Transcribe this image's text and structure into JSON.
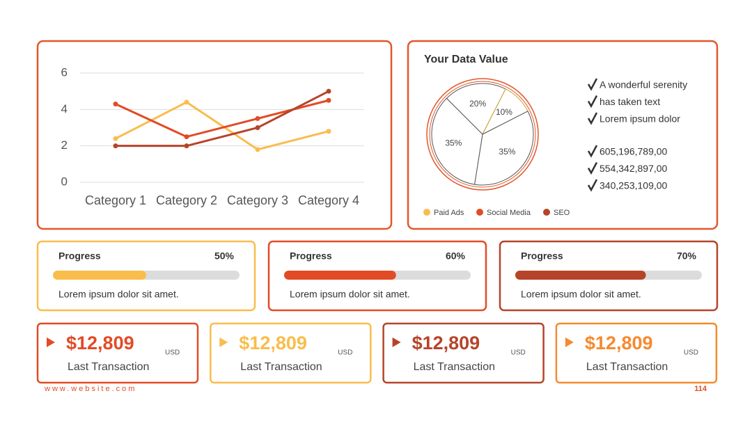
{
  "chart_data": [
    {
      "type": "line",
      "categories": [
        "Category 1",
        "Category 2",
        "Category 3",
        "Category 4"
      ],
      "series": [
        {
          "name": "Paid Ads",
          "color": "#f9bd4c",
          "values": [
            2.4,
            4.4,
            1.8,
            2.8
          ]
        },
        {
          "name": "Social Media",
          "color": "#e24b26",
          "values": [
            4.3,
            2.5,
            3.5,
            4.5
          ]
        },
        {
          "name": "SEO",
          "color": "#b6442a",
          "values": [
            2,
            2,
            3,
            5
          ]
        }
      ],
      "ylim": [
        0,
        6
      ],
      "yticks": [
        0,
        2,
        4,
        6
      ],
      "grid": true
    },
    {
      "type": "pie",
      "title": "Your Data Value",
      "values": [
        20,
        10,
        35,
        35
      ],
      "value_labels": [
        "20%",
        "10%",
        "35%",
        "35%"
      ]
    }
  ],
  "checklist": [
    "A wonderful serenity",
    "has taken text",
    "Lorem ipsum dolor"
  ],
  "figures": [
    "605,196,789,00",
    "554,342,897,00",
    "340,253,109,00"
  ],
  "progress": [
    {
      "title": "Progress",
      "value": 50,
      "value_label": "50%",
      "xlim": [
        0,
        100
      ],
      "color": "#f9bd4c",
      "text": "Lorem ipsum dolor sit amet."
    },
    {
      "title": "Progress",
      "value": 60,
      "value_label": "60%",
      "xlim": [
        0,
        100
      ],
      "color": "#e24b26",
      "text": "Lorem ipsum dolor sit amet."
    },
    {
      "title": "Progress",
      "value": 70,
      "value_label": "70%",
      "xlim": [
        0,
        100
      ],
      "color": "#b6442a",
      "text": "Lorem ipsum dolor sit amet."
    }
  ],
  "transactions": [
    {
      "amount": "$12,809",
      "currency": "USD",
      "label": "Last Transaction",
      "color": "#e24b26"
    },
    {
      "amount": "$12,809",
      "currency": "USD",
      "label": "Last Transaction",
      "color": "#f9bd4c"
    },
    {
      "amount": "$12,809",
      "currency": "USD",
      "label": "Last Transaction",
      "color": "#b6442a"
    },
    {
      "amount": "$12,809",
      "currency": "USD",
      "label": "Last Transaction",
      "color": "#f58a2f"
    }
  ],
  "footer": {
    "website": "www.website.com",
    "page": "114"
  }
}
